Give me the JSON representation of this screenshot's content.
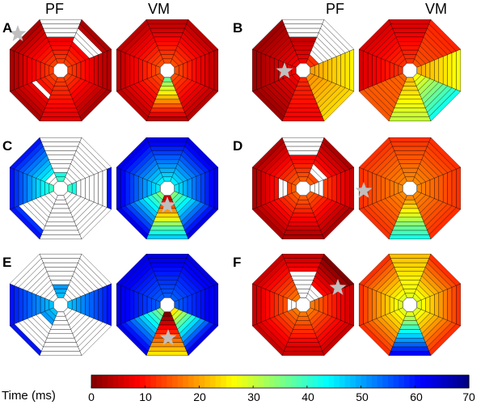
{
  "headers": [
    "PF",
    "VM",
    "PF",
    "VM"
  ],
  "panels": [
    {
      "letter": "A"
    },
    {
      "letter": "B"
    },
    {
      "letter": "C"
    },
    {
      "letter": "D"
    },
    {
      "letter": "E"
    },
    {
      "letter": "F"
    }
  ],
  "colorbar": {
    "title": "Time (ms)",
    "ticks": [
      "0",
      "10",
      "20",
      "30",
      "40",
      "50",
      "60",
      "70"
    ],
    "range_ms": [
      0,
      70
    ],
    "colormap": "jet-reversed"
  },
  "marker": {
    "shape": "star",
    "color": "#bfbfbf"
  }
}
